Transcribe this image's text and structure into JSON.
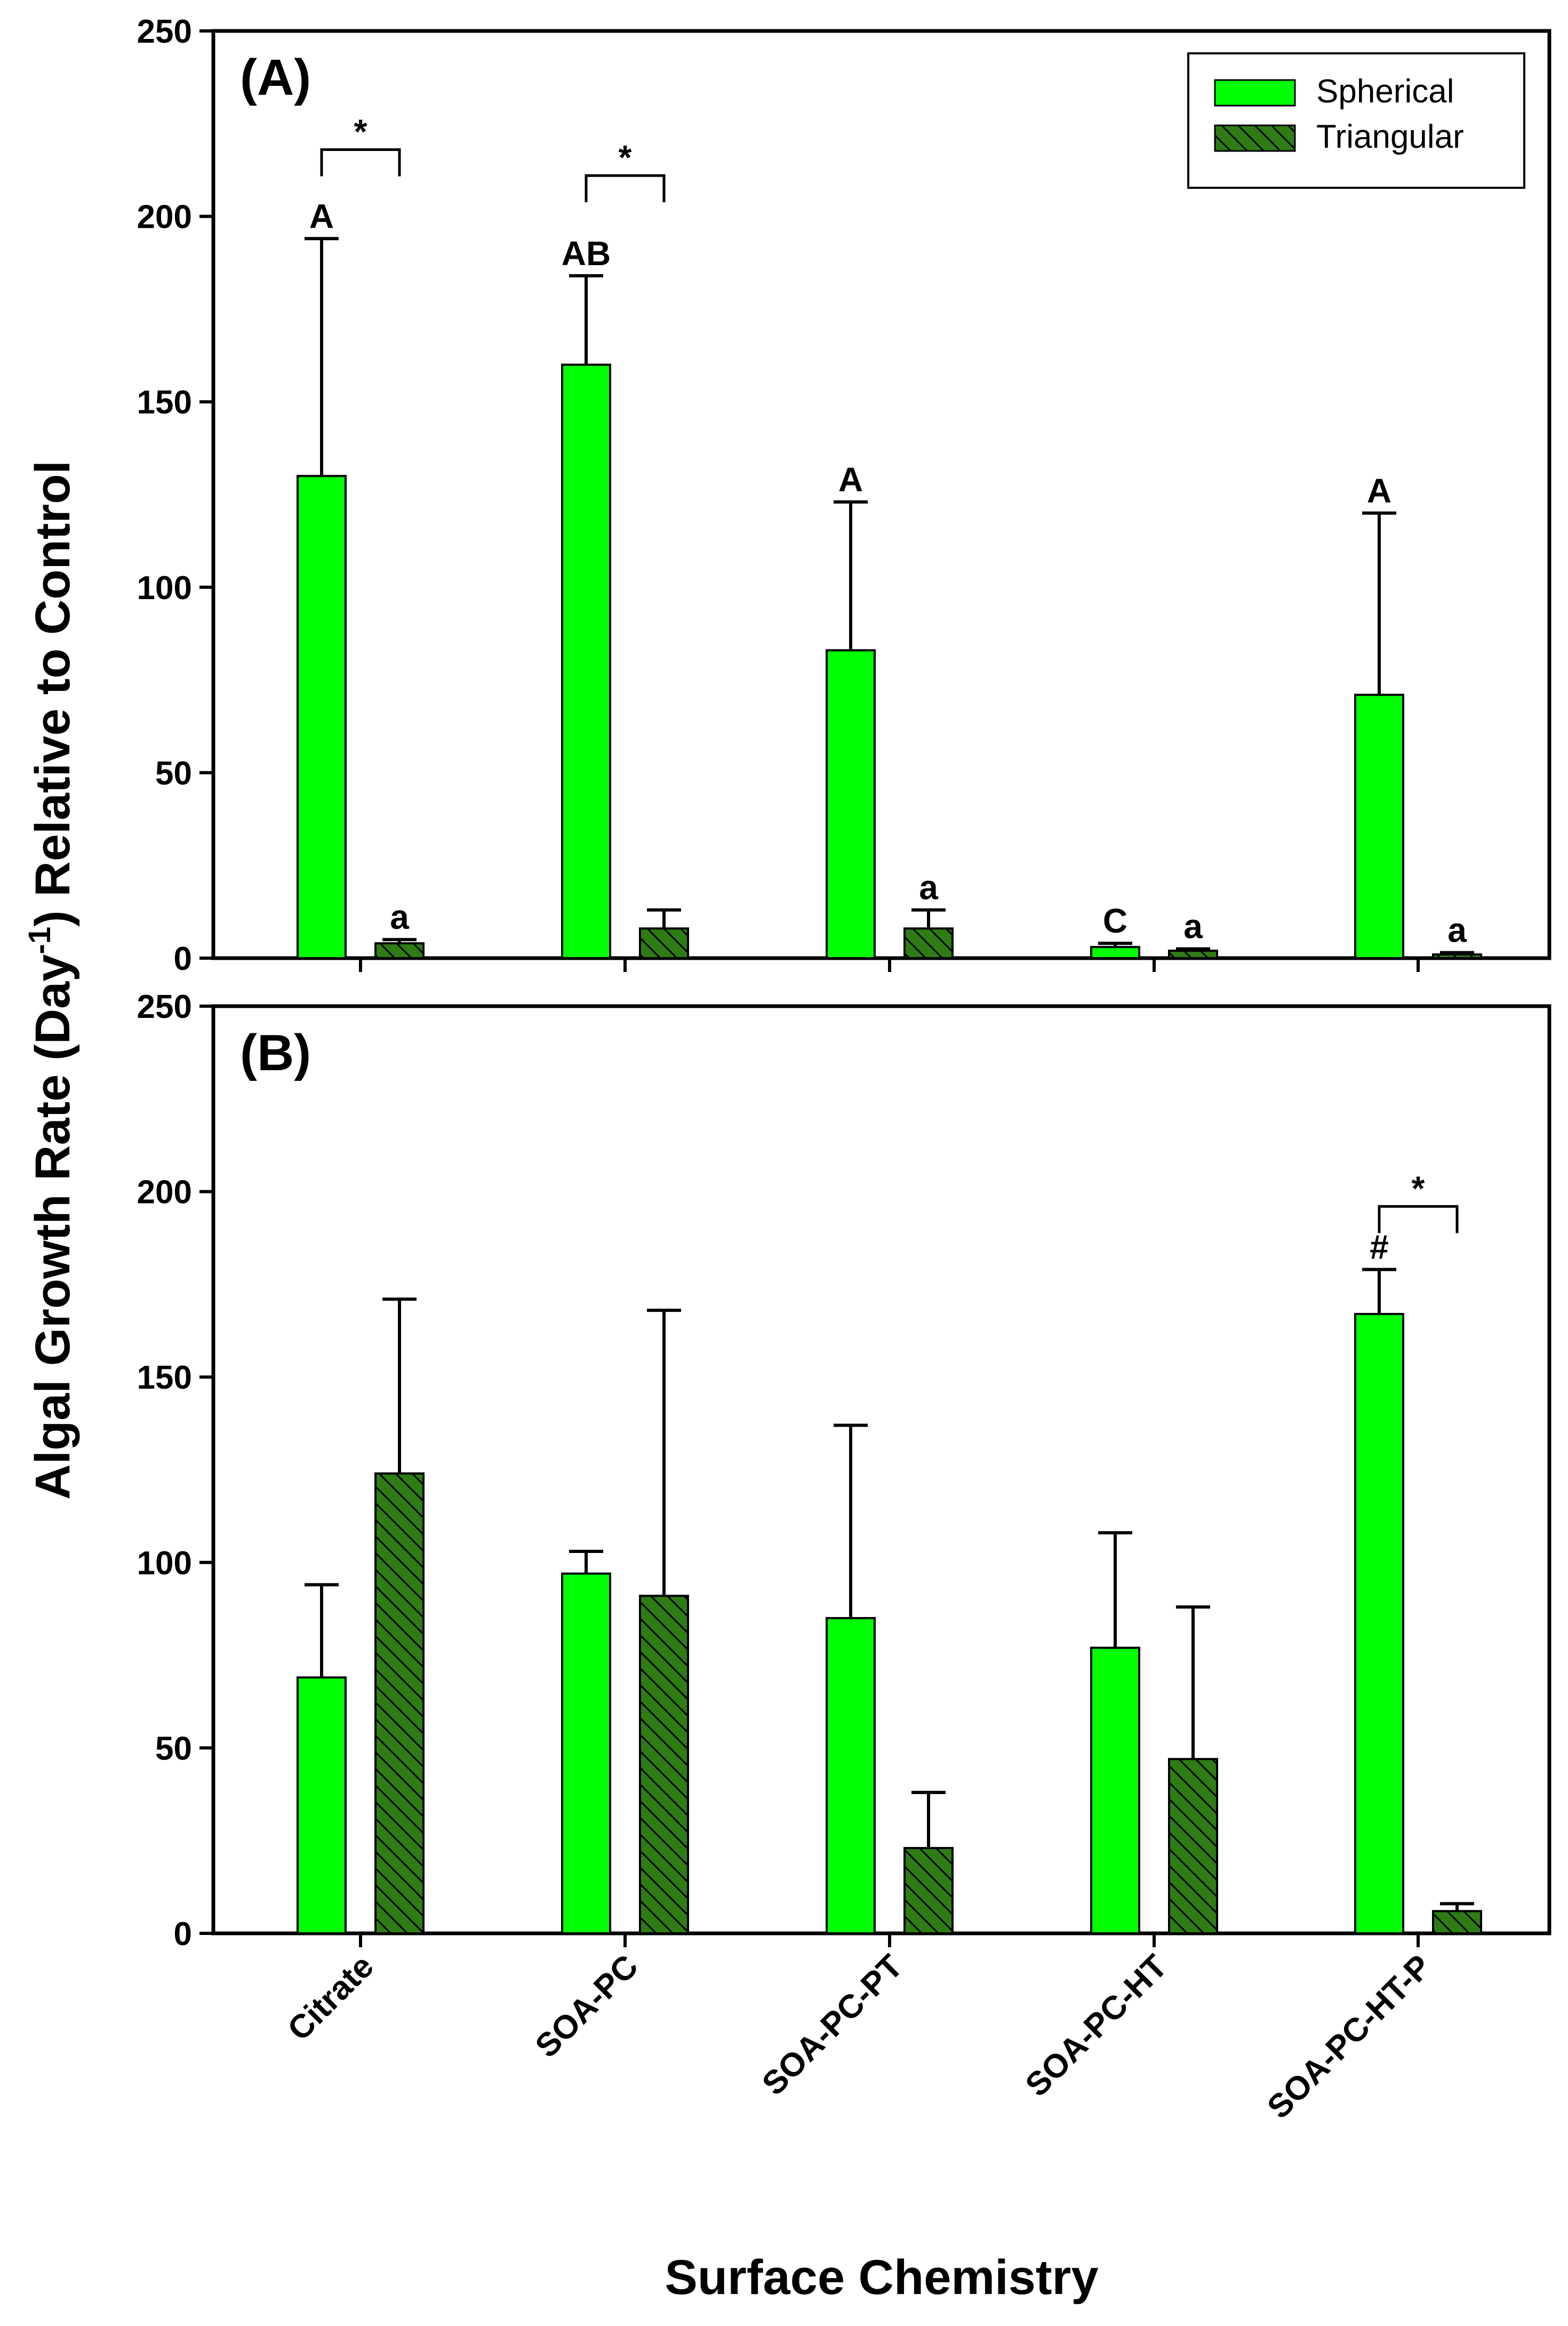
{
  "colors": {
    "spherical": "#00ff00",
    "triangular": "#2e7d14",
    "hatch": "#000000",
    "axis": "#000000"
  },
  "ylabel": {
    "main": "Algal Growth Rate (Day",
    "superscript": "-1",
    "rest": ") Relative to Control"
  },
  "xlabel": "Surface Chemistry",
  "chart_data": [
    {
      "type": "bar",
      "panel_label": "(A)",
      "categories": [
        "Citrate",
        "SOA-PC",
        "SOA-PC-PT",
        "SOA-PC-HT",
        "SOA-PC-HT-P"
      ],
      "ylim": [
        0,
        250
      ],
      "yticks": [
        0,
        50,
        100,
        150,
        200,
        250
      ],
      "xlabel": "Surface Chemistry",
      "ylabel": "Algal Growth Rate (Day-1) Relative to Control",
      "legend": {
        "position": "top-right",
        "entries": [
          "Spherical",
          "Triangular"
        ]
      },
      "series": [
        {
          "name": "Spherical",
          "values": [
            130,
            160,
            83,
            3,
            71
          ],
          "error": [
            64,
            24,
            40,
            1,
            49
          ],
          "labels": [
            "A",
            "AB",
            "A",
            "C",
            "A"
          ]
        },
        {
          "name": "Triangular",
          "values": [
            4,
            8,
            8,
            2,
            1
          ],
          "error": [
            1,
            5,
            5,
            0.5,
            0.5
          ],
          "labels": [
            "a",
            "",
            "a",
            "a",
            "a"
          ]
        }
      ],
      "significance": [
        {
          "category": "Citrate",
          "label": "*",
          "bracket_y": 218
        },
        {
          "category": "SOA-PC",
          "label": "*",
          "bracket_y": 211
        }
      ]
    },
    {
      "type": "bar",
      "panel_label": "(B)",
      "categories": [
        "Citrate",
        "SOA-PC",
        "SOA-PC-PT",
        "SOA-PC-HT",
        "SOA-PC-HT-P"
      ],
      "ylim": [
        0,
        250
      ],
      "yticks": [
        0,
        50,
        100,
        150,
        200,
        250
      ],
      "xlabel": "Surface Chemistry",
      "ylabel": "Algal Growth Rate (Day-1) Relative to Control",
      "series": [
        {
          "name": "Spherical",
          "values": [
            69,
            97,
            85,
            77,
            167
          ],
          "error": [
            25,
            6,
            52,
            31,
            12
          ],
          "labels": [
            "",
            "",
            "",
            "",
            "#"
          ]
        },
        {
          "name": "Triangular",
          "values": [
            124,
            91,
            23,
            47,
            6
          ],
          "error": [
            47,
            77,
            15,
            41,
            2
          ],
          "labels": [
            "",
            "",
            "",
            "",
            ""
          ]
        }
      ],
      "significance": [
        {
          "category": "SOA-PC-HT-P",
          "label": "*",
          "bracket_y": 196
        }
      ]
    }
  ]
}
